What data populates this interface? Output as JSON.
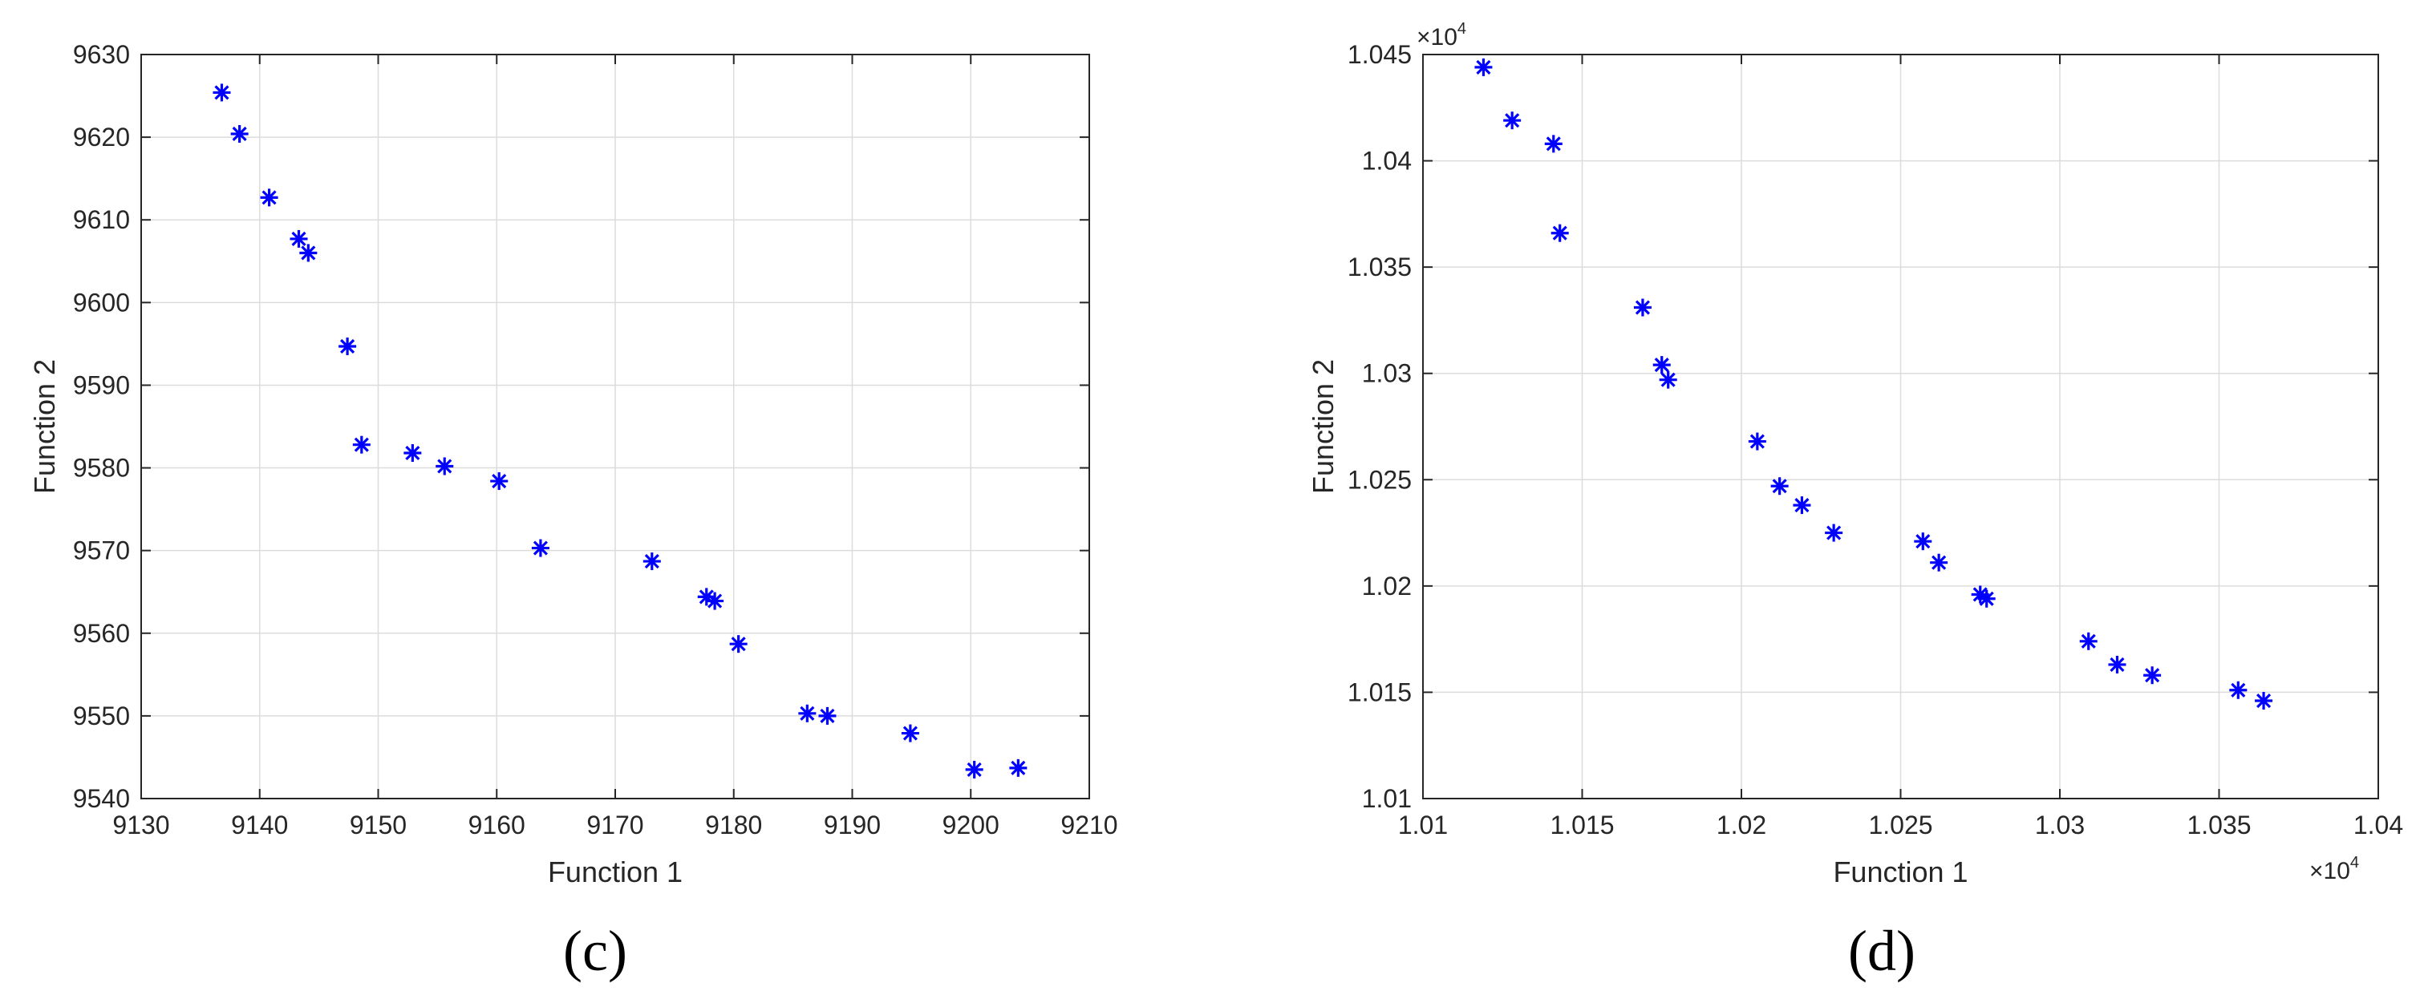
{
  "chart_data": [
    {
      "type": "scatter",
      "panel_label": "(c)",
      "xlabel": "Function 1",
      "ylabel": "Function 2",
      "xlim": [
        9130,
        9210
      ],
      "ylim": [
        9540,
        9630
      ],
      "xticks": [
        9130,
        9140,
        9150,
        9160,
        9170,
        9180,
        9190,
        9200,
        9210
      ],
      "yticks": [
        9540,
        9550,
        9560,
        9570,
        9580,
        9590,
        9600,
        9610,
        9620,
        9630
      ],
      "xtick_labels": [
        "9130",
        "9140",
        "9150",
        "9160",
        "9170",
        "9180",
        "9190",
        "9200",
        "9210"
      ],
      "ytick_labels": [
        "9540",
        "9550",
        "9560",
        "9570",
        "9580",
        "9590",
        "9600",
        "9610",
        "9620",
        "9630"
      ],
      "grid": true,
      "marker": "asterisk",
      "color": "#0000ff",
      "x": [
        9136.8,
        9138.3,
        9140.8,
        9143.3,
        9144.1,
        9147.4,
        9148.6,
        9152.9,
        9155.6,
        9160.2,
        9163.7,
        9173.1,
        9177.7,
        9178.4,
        9180.4,
        9186.2,
        9187.9,
        9194.9,
        9200.3,
        9204.0
      ],
      "y": [
        9625.4,
        9620.4,
        9612.7,
        9607.7,
        9606.0,
        9594.7,
        9582.8,
        9581.8,
        9580.2,
        9578.4,
        9570.3,
        9568.7,
        9564.4,
        9563.9,
        9558.7,
        9550.3,
        9550.0,
        9547.9,
        9543.5,
        9543.7
      ]
    },
    {
      "type": "scatter",
      "panel_label": "(d)",
      "xlabel": "Function 1",
      "ylabel": "Function 2",
      "x_multiplier": "×10",
      "x_multiplier_exp": "4",
      "y_multiplier": "×10",
      "y_multiplier_exp": "4",
      "xlim": [
        1.01,
        1.04
      ],
      "ylim": [
        1.01,
        1.045
      ],
      "xticks": [
        1.01,
        1.015,
        1.02,
        1.025,
        1.03,
        1.035,
        1.04
      ],
      "yticks": [
        1.01,
        1.015,
        1.02,
        1.025,
        1.03,
        1.035,
        1.04,
        1.045
      ],
      "xtick_labels": [
        "1.01",
        "1.015",
        "1.02",
        "1.025",
        "1.03",
        "1.035",
        "1.04"
      ],
      "ytick_labels": [
        "1.01",
        "1.015",
        "1.02",
        "1.025",
        "1.03",
        "1.035",
        "1.04",
        "1.045"
      ],
      "grid": true,
      "marker": "asterisk",
      "color": "#0000ff",
      "x": [
        1.0119,
        1.0128,
        1.0141,
        1.0143,
        1.0169,
        1.0175,
        1.0177,
        1.0205,
        1.0212,
        1.0219,
        1.0229,
        1.0257,
        1.0262,
        1.0275,
        1.0277,
        1.0309,
        1.0318,
        1.0329,
        1.0356,
        1.0364
      ],
      "y": [
        1.0444,
        1.0419,
        1.0408,
        1.0366,
        1.0331,
        1.0304,
        1.0297,
        1.0268,
        1.0247,
        1.0238,
        1.0225,
        1.0221,
        1.0211,
        1.0196,
        1.0194,
        1.0174,
        1.0163,
        1.0158,
        1.0151,
        1.0146
      ]
    }
  ]
}
